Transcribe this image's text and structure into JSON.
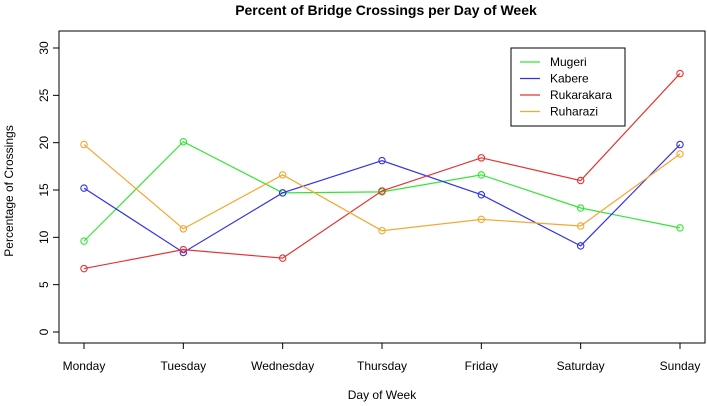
{
  "chart_data": {
    "type": "line",
    "title": "Percent of Bridge Crossings per Day of Week",
    "xlabel": "Day of Week",
    "ylabel": "Percentage of Crossings",
    "categories": [
      "Monday",
      "Tuesday",
      "Wednesday",
      "Thursday",
      "Friday",
      "Saturday",
      "Sunday"
    ],
    "ylim": [
      0,
      30
    ],
    "yticks": [
      "0",
      "5",
      "10",
      "15",
      "20",
      "25",
      "30"
    ],
    "grid": false,
    "legend_position": "top-right",
    "series": [
      {
        "name": "Mugeri",
        "color": "#33e633",
        "values": [
          9.6,
          20.1,
          14.7,
          14.8,
          16.6,
          13.1,
          11.0
        ]
      },
      {
        "name": "Kabere",
        "color": "#3333e6",
        "values": [
          15.2,
          8.4,
          14.7,
          18.1,
          14.5,
          9.1,
          19.8
        ]
      },
      {
        "name": "Rukarakara",
        "color": "#e63333",
        "values": [
          6.7,
          8.7,
          7.8,
          14.9,
          18.4,
          16.0,
          27.3
        ]
      },
      {
        "name": "Ruharazi",
        "color": "#f5a733",
        "values": [
          19.8,
          10.9,
          16.6,
          10.7,
          11.9,
          11.2,
          18.8
        ]
      }
    ]
  }
}
